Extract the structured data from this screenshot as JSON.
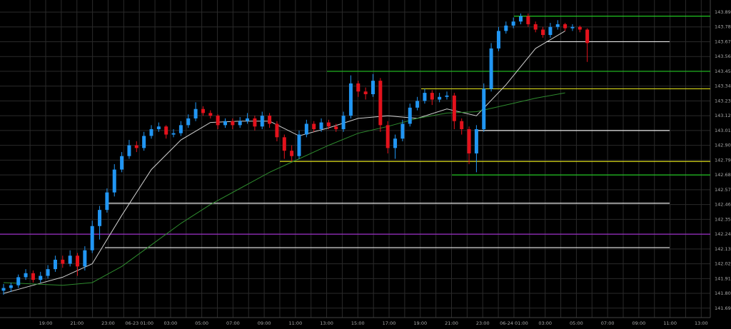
{
  "chart_data": {
    "type": "candlestick",
    "ylim": [
      141.62,
      143.98
    ],
    "yticks": [
      143.89,
      143.78,
      143.67,
      143.56,
      143.45,
      143.34,
      143.23,
      143.12,
      143.01,
      {
        "value": 142.9,
        "label": "142.90"
      },
      142.79,
      142.68,
      142.57,
      142.46,
      142.35,
      142.24,
      142.13,
      142.02,
      141.91,
      {
        "value": 141.8,
        "label": "141.80"
      },
      141.69
    ],
    "xticks": [
      "19:00",
      "21:00",
      "23:00",
      "06-23 01:00",
      "03:00",
      "05:00",
      "07:00",
      "09:00",
      "11:00",
      "13:00",
      "15:00",
      "17:00",
      "19:00",
      "21:00",
      "23:00",
      "06-24 01:00",
      "03:00",
      "05:00",
      "07:00",
      "09:00",
      "11:00",
      "13:00"
    ],
    "up_color": "#2196f3",
    "down_color": "#e3121c",
    "grid": true,
    "candles": [
      [
        141.82,
        141.87,
        141.79,
        141.84
      ],
      [
        141.84,
        141.88,
        141.81,
        141.86
      ],
      [
        141.86,
        141.94,
        141.84,
        141.92
      ],
      [
        141.92,
        141.98,
        141.9,
        141.95
      ],
      [
        141.95,
        141.97,
        141.88,
        141.9
      ],
      [
        141.9,
        141.96,
        141.88,
        141.93
      ],
      [
        141.93,
        142.01,
        141.91,
        141.98
      ],
      [
        141.98,
        142.08,
        141.96,
        142.05
      ],
      [
        142.05,
        142.08,
        141.99,
        142.02
      ],
      [
        142.02,
        142.12,
        142.0,
        142.08
      ],
      [
        142.08,
        142.1,
        141.93,
        142.0
      ],
      [
        142.0,
        142.15,
        141.97,
        142.12
      ],
      [
        142.12,
        142.34,
        142.1,
        142.3
      ],
      [
        142.3,
        142.45,
        142.2,
        142.42
      ],
      [
        142.42,
        142.58,
        142.4,
        142.55
      ],
      [
        142.55,
        142.76,
        142.52,
        142.72
      ],
      [
        142.72,
        142.85,
        142.7,
        142.82
      ],
      [
        142.82,
        142.94,
        142.8,
        142.9
      ],
      [
        142.9,
        142.93,
        142.85,
        142.88
      ],
      [
        142.88,
        143.0,
        142.86,
        142.97
      ],
      [
        142.97,
        143.05,
        142.95,
        143.02
      ],
      [
        143.02,
        143.07,
        143.0,
        143.04
      ],
      [
        143.04,
        143.05,
        142.95,
        142.98
      ],
      [
        142.98,
        143.02,
        142.96,
        142.99
      ],
      [
        142.99,
        143.08,
        142.97,
        143.05
      ],
      [
        143.05,
        143.13,
        143.03,
        143.1
      ],
      [
        143.1,
        143.22,
        143.08,
        143.17
      ],
      [
        143.17,
        143.19,
        143.12,
        143.14
      ],
      [
        143.14,
        143.16,
        143.1,
        143.12
      ],
      [
        143.12,
        143.13,
        143.02,
        143.05
      ],
      [
        143.05,
        143.1,
        143.03,
        143.08
      ],
      [
        143.08,
        143.1,
        143.02,
        143.05
      ],
      [
        143.05,
        143.11,
        143.03,
        143.08
      ],
      [
        143.08,
        143.14,
        143.06,
        143.1
      ],
      [
        143.1,
        143.12,
        143.01,
        143.04
      ],
      [
        143.04,
        143.15,
        143.02,
        143.12
      ],
      [
        143.12,
        143.14,
        143.03,
        143.06
      ],
      [
        143.06,
        143.08,
        142.93,
        142.96
      ],
      [
        142.96,
        142.98,
        142.8,
        142.86
      ],
      [
        142.86,
        142.9,
        142.78,
        142.82
      ],
      [
        142.82,
        143.01,
        142.8,
        142.98
      ],
      [
        142.98,
        143.09,
        142.96,
        143.06
      ],
      [
        143.06,
        143.08,
        143.0,
        143.02
      ],
      [
        143.02,
        143.1,
        143.0,
        143.07
      ],
      [
        143.07,
        143.09,
        143.02,
        143.04
      ],
      [
        143.04,
        143.06,
        143.0,
        143.02
      ],
      [
        143.02,
        143.15,
        143.0,
        143.12
      ],
      [
        143.12,
        143.42,
        143.1,
        143.36
      ],
      [
        143.36,
        143.38,
        143.26,
        143.3
      ],
      [
        143.3,
        143.33,
        143.24,
        143.28
      ],
      [
        143.28,
        143.43,
        143.26,
        143.38
      ],
      [
        143.38,
        143.4,
        143.0,
        143.05
      ],
      [
        143.05,
        143.08,
        142.84,
        142.88
      ],
      [
        142.88,
        142.98,
        142.8,
        142.95
      ],
      [
        142.95,
        143.09,
        142.93,
        143.06
      ],
      [
        143.06,
        143.21,
        143.04,
        143.18
      ],
      [
        143.18,
        143.26,
        143.16,
        143.23
      ],
      [
        143.23,
        143.32,
        143.21,
        143.29
      ],
      [
        143.29,
        143.31,
        143.2,
        143.24
      ],
      [
        143.24,
        143.29,
        143.22,
        143.26
      ],
      [
        143.26,
        143.3,
        143.24,
        143.27
      ],
      [
        143.27,
        143.29,
        143.02,
        143.08
      ],
      [
        143.08,
        143.1,
        142.98,
        143.02
      ],
      [
        143.02,
        143.04,
        142.76,
        142.84
      ],
      [
        142.84,
        143.05,
        142.7,
        143.02
      ],
      [
        143.02,
        143.36,
        143.0,
        143.32
      ],
      [
        143.32,
        143.66,
        143.3,
        143.62
      ],
      [
        143.62,
        143.78,
        143.6,
        143.75
      ],
      [
        143.75,
        143.82,
        143.73,
        143.79
      ],
      [
        143.79,
        143.85,
        143.77,
        143.82
      ],
      [
        143.82,
        143.88,
        143.8,
        143.86
      ],
      [
        143.86,
        143.88,
        143.78,
        143.8
      ],
      [
        143.8,
        143.82,
        143.74,
        143.76
      ],
      [
        143.76,
        143.78,
        143.7,
        143.72
      ],
      [
        143.72,
        143.81,
        143.7,
        143.78
      ],
      [
        143.78,
        143.83,
        143.76,
        143.8
      ],
      [
        143.8,
        143.81,
        143.75,
        143.77
      ],
      [
        143.77,
        143.8,
        143.75,
        143.78
      ],
      [
        143.78,
        143.79,
        143.74,
        143.76
      ],
      [
        143.76,
        143.77,
        143.52,
        143.66
      ]
    ],
    "series": [
      {
        "color": "#d0d0d0",
        "values": [
          141.8,
          141.86,
          141.92,
          142.02,
          142.38,
          142.72,
          142.94,
          143.07,
          143.08,
          143.08,
          142.97,
          143.03,
          143.1,
          143.12,
          143.1,
          143.17,
          143.12,
          143.35,
          143.62,
          143.75
        ]
      },
      {
        "color": "#2e8b2e",
        "values": [
          141.88,
          141.87,
          141.86,
          141.88,
          142.0,
          142.16,
          142.32,
          142.46,
          142.58,
          142.7,
          142.8,
          142.9,
          142.99,
          143.04,
          143.1,
          143.14,
          143.15,
          143.2,
          143.25,
          143.29
        ]
      }
    ],
    "levels": [
      {
        "value": 143.86,
        "color": "#22c422"
      },
      {
        "value": 143.45,
        "color": "#22c422"
      },
      {
        "value": 143.32,
        "color": "#d6d61a"
      },
      {
        "value": 142.78,
        "color": "#d6d61a"
      },
      {
        "value": 142.68,
        "color": "#22c422"
      },
      {
        "value": 143.67,
        "color": "#e8e8e8"
      },
      {
        "value": 143.01,
        "color": "#e8e8e8"
      },
      {
        "value": 142.47,
        "color": "#e8e8e8"
      },
      {
        "value": 142.14,
        "color": "#e8e8e8"
      },
      {
        "value": 142.24,
        "color": "#9b30c8"
      }
    ]
  }
}
